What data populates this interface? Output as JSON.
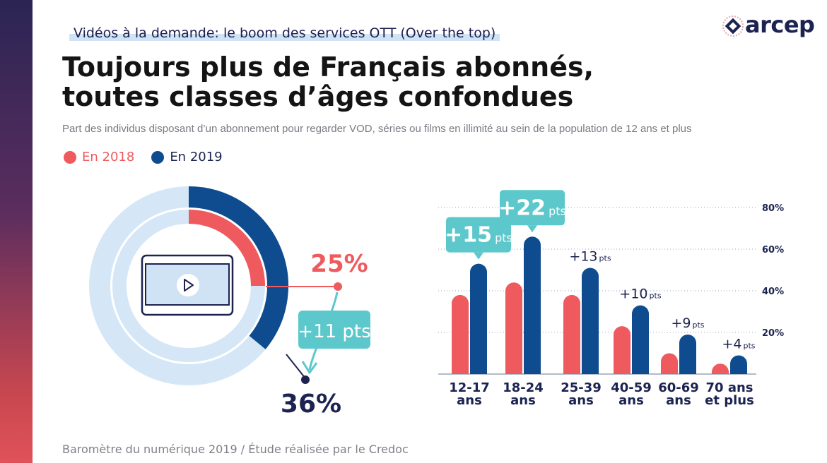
{
  "kicker": "Vidéos à la demande: le boom des services OTT (Over the top)",
  "title_line1": "Toujours plus de Français abonnés,",
  "title_line2": "toutes classes d’âges confondues",
  "subtitle": "Part des individus disposant d’un abonnement pour regarder VOD, séries ou films en illimité au sein de la population de 12 ans et plus",
  "logo": "arcep",
  "source": "Baromètre du numérique 2019 / Étude réalisée par le Credoc",
  "colors": {
    "y2018": "#ef5a5f",
    "y2019": "#0f4c8f",
    "ring_track": "#d5e7f7",
    "callout": "#5cc8cc",
    "navy_text": "#1c2350"
  },
  "chart_data": [
    {
      "type": "pie",
      "series": [
        {
          "name": "En 2018",
          "value": 25,
          "label": "25%"
        },
        {
          "name": "En 2019",
          "value": 36,
          "label": "36%"
        }
      ],
      "change": "+11 pts"
    },
    {
      "type": "bar",
      "categories": [
        "12-17 ans",
        "18-24 ans",
        "25-39 ans",
        "40-59 ans",
        "60-69 ans",
        "70 ans et plus"
      ],
      "category_lines": [
        [
          "12-17",
          "ans"
        ],
        [
          "18-24",
          "ans"
        ],
        [
          "25-39",
          "ans"
        ],
        [
          "40-59",
          "ans"
        ],
        [
          "60-69",
          "ans"
        ],
        [
          "70 ans",
          "et plus"
        ]
      ],
      "series": [
        {
          "name": "En 2018",
          "values": [
            38,
            44,
            38,
            23,
            10,
            5
          ]
        },
        {
          "name": "En 2019",
          "values": [
            53,
            66,
            51,
            33,
            19,
            9
          ]
        }
      ],
      "changes": [
        {
          "value": "+15",
          "unit": "pts",
          "boxed": true
        },
        {
          "value": "+22",
          "unit": "pts",
          "boxed": true
        },
        {
          "value": "+13",
          "unit": "pts",
          "boxed": false
        },
        {
          "value": "+10",
          "unit": "pts",
          "boxed": false
        },
        {
          "value": "+9",
          "unit": "pts",
          "boxed": false
        },
        {
          "value": "+4",
          "unit": "pts",
          "boxed": false
        }
      ],
      "yticks": [
        20,
        40,
        60,
        80
      ],
      "ytick_labels": [
        "20%",
        "40%",
        "60%",
        "80%"
      ],
      "ylim": [
        0,
        80
      ],
      "grid": "dotted"
    }
  ]
}
